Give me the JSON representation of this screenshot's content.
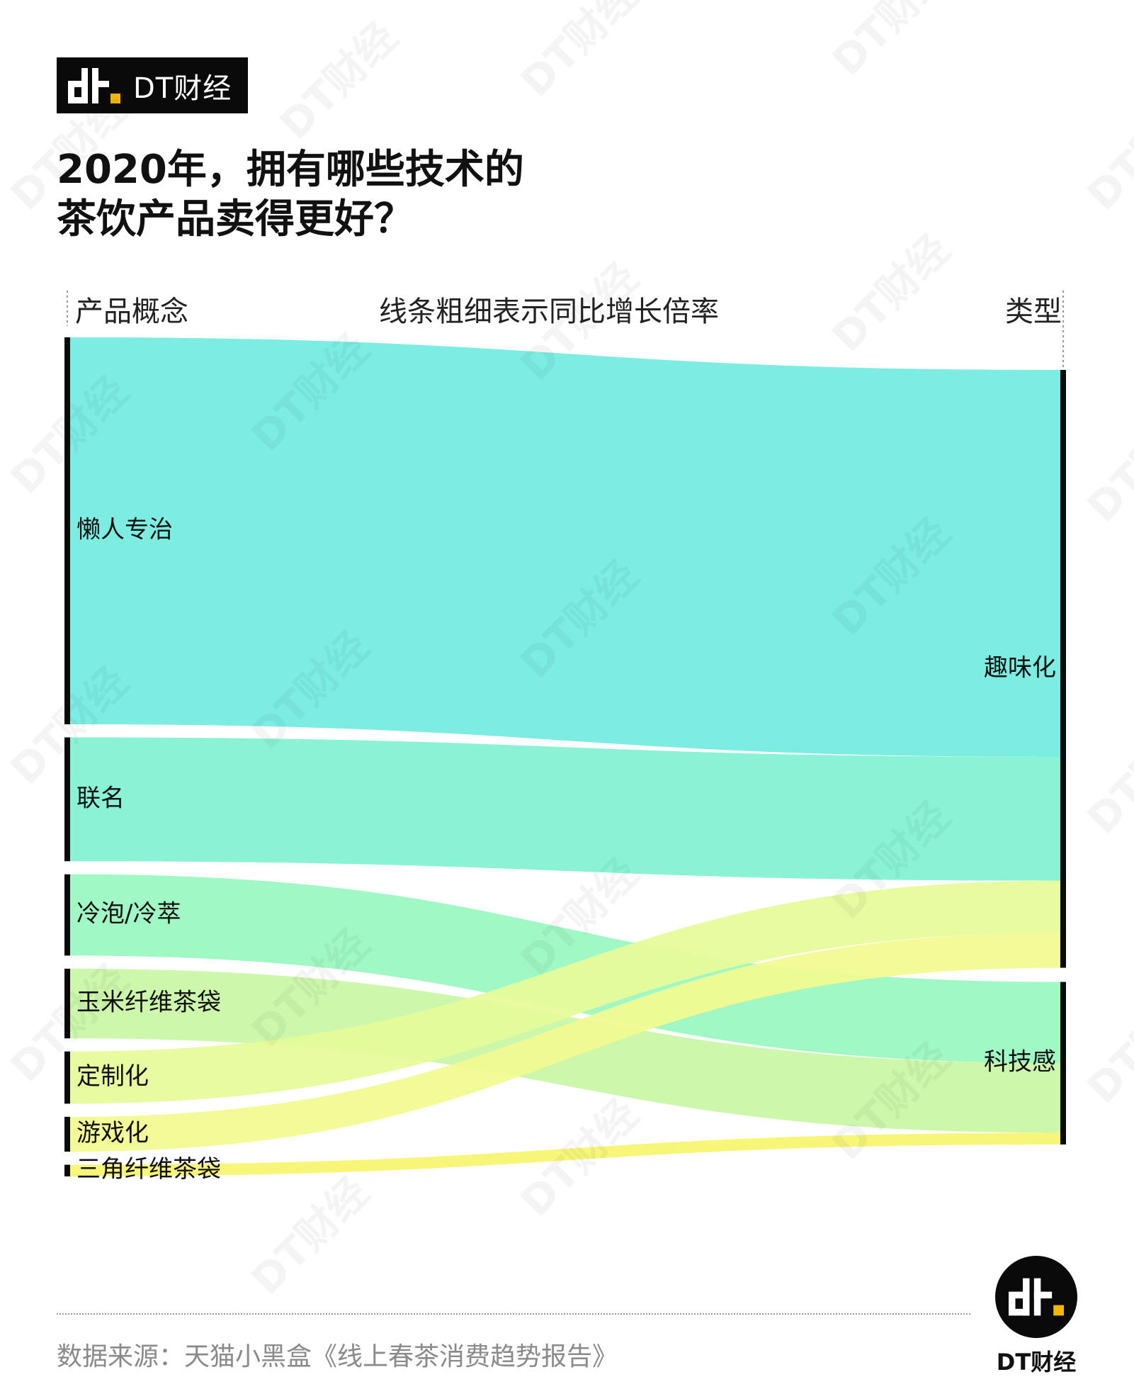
{
  "brand": {
    "name": "DT财经",
    "logo_icon": "dt-logo-icon"
  },
  "title_lines": [
    "2020年，拥有哪些技术的",
    "茶饮产品卖得更好？"
  ],
  "headers": {
    "left": "产品概念",
    "center": "线条粗细表示同比增长倍率",
    "right": "类型"
  },
  "chart_data": {
    "type": "sankey",
    "left_nodes": [
      {
        "name": "懒人专治",
        "value": 10
      },
      {
        "name": "联名",
        "value": 3.2
      },
      {
        "name": "冷泡/冷萃",
        "value": 2.1
      },
      {
        "name": "玉米纤维茶袋",
        "value": 1.8
      },
      {
        "name": "定制化",
        "value": 1.35
      },
      {
        "name": "游戏化",
        "value": 0.9
      },
      {
        "name": "三角纤维茶袋",
        "value": 0.3
      }
    ],
    "right_nodes": [
      {
        "name": "趣味化",
        "value": 15.45
      },
      {
        "name": "科技感",
        "value": 4.2
      }
    ],
    "links": [
      {
        "source": "懒人专治",
        "target": "趣味化",
        "value": 10,
        "color": "#72ece0"
      },
      {
        "source": "联名",
        "target": "趣味化",
        "value": 3.2,
        "color": "#80f2d3"
      },
      {
        "source": "冷泡/冷萃",
        "target": "科技感",
        "value": 2.1,
        "color": "#98f7bf"
      },
      {
        "source": "玉米纤维茶袋",
        "target": "科技感",
        "value": 1.8,
        "color": "#c9f7a4"
      },
      {
        "source": "定制化",
        "target": "趣味化",
        "value": 1.35,
        "color": "#e6fb99"
      },
      {
        "source": "游戏化",
        "target": "趣味化",
        "value": 0.9,
        "color": "#f2fb8f"
      },
      {
        "source": "三角纤维茶袋",
        "target": "科技感",
        "value": 0.3,
        "color": "#f6f56e"
      }
    ]
  },
  "source_text": "数据来源：天猫小黑盒《线上春茶消费趋势报告》",
  "watermark_text": "DT财经",
  "colors": {
    "node_bar": "#0a0a0a",
    "accent": "#f2b705"
  }
}
